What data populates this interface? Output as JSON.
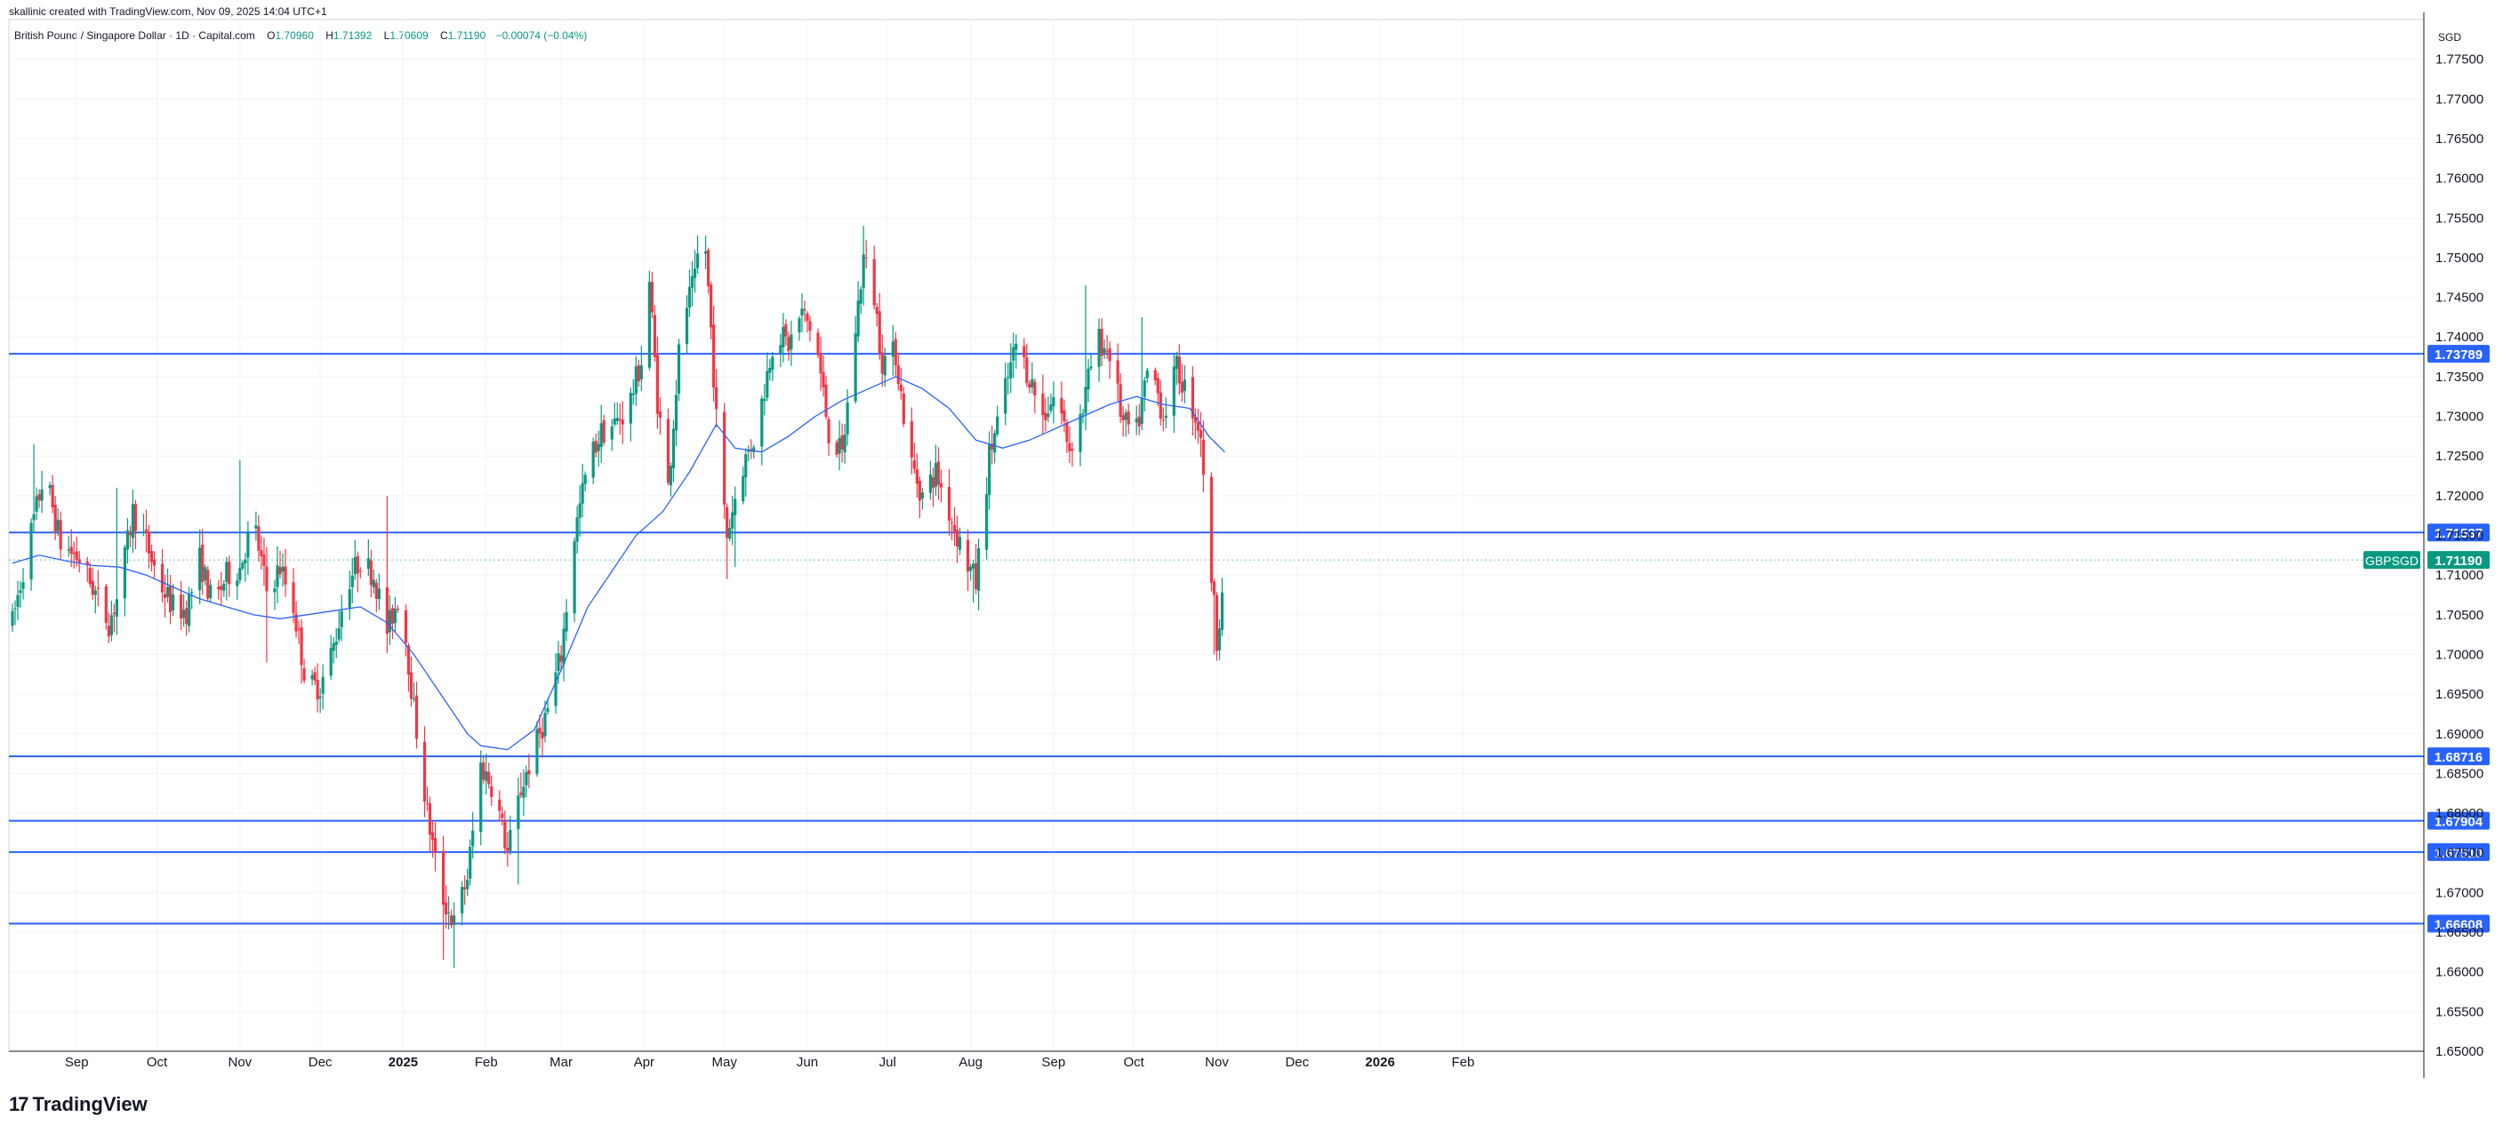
{
  "header": {
    "credit": "skallinic created with TradingView.com, Nov 09, 2025 14:04 UTC+1"
  },
  "legend": {
    "symbol": "British Pound / Singapore Dollar · 1D · Capital.com",
    "o_label": "O",
    "o": "1.70960",
    "h_label": "H",
    "h": "1.71392",
    "l_label": "L",
    "l": "1.70609",
    "c_label": "C",
    "c": "1.71190",
    "change": "−0.00074 (−0.04%)"
  },
  "footer": {
    "logo_mark": "17",
    "logo_text": "TradingView"
  },
  "colors": {
    "up": "#089981",
    "down": "#f23645",
    "level": "#2962ff",
    "ma": "#2962ff",
    "grid": "#f0f3fa",
    "price_tag": "#089981"
  },
  "chart_data": {
    "type": "candlestick",
    "symbol": "GBPSGD",
    "currency": "SGD",
    "ylim": [
      1.65,
      1.78
    ],
    "y_ticks": [
      "1.65000",
      "1.65500",
      "1.66000",
      "1.66500",
      "1.67000",
      "1.67500",
      "1.68000",
      "1.68500",
      "1.69000",
      "1.69500",
      "1.70000",
      "1.70500",
      "1.71000",
      "1.71500",
      "1.72000",
      "1.72500",
      "1.73000",
      "1.73500",
      "1.74000",
      "1.74500",
      "1.75000",
      "1.75500",
      "1.76000",
      "1.76500",
      "1.77000",
      "1.77500"
    ],
    "x_ticks": [
      {
        "label": "Sep",
        "day": 24,
        "bold": false
      },
      {
        "label": "Oct",
        "day": 54,
        "bold": false
      },
      {
        "label": "Nov",
        "day": 85,
        "bold": false
      },
      {
        "label": "Dec",
        "day": 115,
        "bold": false
      },
      {
        "label": "2025",
        "day": 146,
        "bold": true
      },
      {
        "label": "Feb",
        "day": 177,
        "bold": false
      },
      {
        "label": "Mar",
        "day": 205,
        "bold": false
      },
      {
        "label": "Apr",
        "day": 236,
        "bold": false
      },
      {
        "label": "May",
        "day": 266,
        "bold": false
      },
      {
        "label": "Jun",
        "day": 297,
        "bold": false
      },
      {
        "label": "Jul",
        "day": 327,
        "bold": false
      },
      {
        "label": "Aug",
        "day": 358,
        "bold": false
      },
      {
        "label": "Sep",
        "day": 389,
        "bold": false
      },
      {
        "label": "Oct",
        "day": 419,
        "bold": false
      },
      {
        "label": "Nov",
        "day": 450,
        "bold": false
      },
      {
        "label": "Dec",
        "day": 480,
        "bold": false
      },
      {
        "label": "2026",
        "day": 511,
        "bold": true
      },
      {
        "label": "Feb",
        "day": 542,
        "bold": false
      }
    ],
    "horizontal_levels": [
      "1.73789",
      "1.71537",
      "1.68716",
      "1.67904",
      "1.67510",
      "1.66608"
    ],
    "last_price": {
      "label": "GBPSGD",
      "value": "1.71190"
    },
    "moving_average": [
      [
        0,
        1.7115
      ],
      [
        10,
        1.7125
      ],
      [
        20,
        1.7118
      ],
      [
        30,
        1.7112
      ],
      [
        40,
        1.711
      ],
      [
        50,
        1.71
      ],
      [
        60,
        1.7085
      ],
      [
        70,
        1.707
      ],
      [
        80,
        1.706
      ],
      [
        90,
        1.705
      ],
      [
        100,
        1.7045
      ],
      [
        110,
        1.705
      ],
      [
        120,
        1.7055
      ],
      [
        130,
        1.706
      ],
      [
        140,
        1.704
      ],
      [
        150,
        1.7
      ],
      [
        160,
        1.695
      ],
      [
        170,
        1.69
      ],
      [
        175,
        1.6885
      ],
      [
        185,
        1.688
      ],
      [
        195,
        1.6905
      ],
      [
        205,
        1.698
      ],
      [
        215,
        1.706
      ],
      [
        225,
        1.711
      ],
      [
        233,
        1.715
      ],
      [
        243,
        1.718
      ],
      [
        253,
        1.723
      ],
      [
        263,
        1.729
      ],
      [
        270,
        1.726
      ],
      [
        280,
        1.7255
      ],
      [
        290,
        1.7275
      ],
      [
        300,
        1.73
      ],
      [
        310,
        1.732
      ],
      [
        320,
        1.7335
      ],
      [
        330,
        1.735
      ],
      [
        340,
        1.7335
      ],
      [
        350,
        1.731
      ],
      [
        360,
        1.727
      ],
      [
        370,
        1.726
      ],
      [
        380,
        1.727
      ],
      [
        390,
        1.7285
      ],
      [
        400,
        1.73
      ],
      [
        410,
        1.7315
      ],
      [
        420,
        1.7325
      ],
      [
        430,
        1.7315
      ],
      [
        440,
        1.731
      ],
      [
        447,
        1.7275
      ],
      [
        453,
        1.7255
      ]
    ],
    "ohlc_anchors": [
      [
        0,
        1.704
      ],
      [
        6,
        1.714
      ],
      [
        12,
        1.723
      ],
      [
        18,
        1.714
      ],
      [
        25,
        1.712
      ],
      [
        30,
        1.7085
      ],
      [
        36,
        1.704
      ],
      [
        40,
        1.708
      ],
      [
        45,
        1.718
      ],
      [
        50,
        1.714
      ],
      [
        55,
        1.709
      ],
      [
        60,
        1.706
      ],
      [
        65,
        1.7055
      ],
      [
        70,
        1.712
      ],
      [
        75,
        1.706
      ],
      [
        80,
        1.71
      ],
      [
        85,
        1.711
      ],
      [
        90,
        1.717
      ],
      [
        95,
        1.708
      ],
      [
        100,
        1.711
      ],
      [
        105,
        1.706
      ],
      [
        110,
        1.696
      ],
      [
        115,
        1.696
      ],
      [
        120,
        1.701
      ],
      [
        125,
        1.709
      ],
      [
        130,
        1.712
      ],
      [
        135,
        1.71
      ],
      [
        140,
        1.703
      ],
      [
        145,
        1.708
      ],
      [
        150,
        1.693
      ],
      [
        155,
        1.68
      ],
      [
        160,
        1.67
      ],
      [
        165,
        1.666
      ],
      [
        170,
        1.672
      ],
      [
        175,
        1.686
      ],
      [
        180,
        1.683
      ],
      [
        185,
        1.675
      ],
      [
        190,
        1.683
      ],
      [
        195,
        1.688
      ],
      [
        200,
        1.693
      ],
      [
        205,
        1.7
      ],
      [
        210,
        1.715
      ],
      [
        215,
        1.724
      ],
      [
        220,
        1.728
      ],
      [
        225,
        1.729
      ],
      [
        230,
        1.731
      ],
      [
        235,
        1.737
      ],
      [
        238,
        1.747
      ],
      [
        241,
        1.732
      ],
      [
        245,
        1.721
      ],
      [
        250,
        1.742
      ],
      [
        255,
        1.747
      ],
      [
        258,
        1.756
      ],
      [
        261,
        1.741
      ],
      [
        264,
        1.724
      ],
      [
        267,
        1.715
      ],
      [
        272,
        1.723
      ],
      [
        278,
        1.728
      ],
      [
        285,
        1.741
      ],
      [
        290,
        1.739
      ],
      [
        295,
        1.743
      ],
      [
        300,
        1.74
      ],
      [
        305,
        1.728
      ],
      [
        310,
        1.725
      ],
      [
        315,
        1.741
      ],
      [
        318,
        1.75
      ],
      [
        322,
        1.745
      ],
      [
        325,
        1.737
      ],
      [
        330,
        1.738
      ],
      [
        335,
        1.725
      ],
      [
        340,
        1.72
      ],
      [
        345,
        1.723
      ],
      [
        350,
        1.718
      ],
      [
        355,
        1.713
      ],
      [
        360,
        1.709
      ],
      [
        365,
        1.725
      ],
      [
        370,
        1.732
      ],
      [
        375,
        1.739
      ],
      [
        380,
        1.735
      ],
      [
        385,
        1.73
      ],
      [
        390,
        1.733
      ],
      [
        395,
        1.726
      ],
      [
        400,
        1.731
      ],
      [
        405,
        1.74
      ],
      [
        410,
        1.738
      ],
      [
        415,
        1.729
      ],
      [
        420,
        1.728
      ],
      [
        425,
        1.737
      ],
      [
        430,
        1.73
      ],
      [
        435,
        1.736
      ],
      [
        440,
        1.732
      ],
      [
        444,
        1.728
      ],
      [
        446,
        1.715
      ],
      [
        448,
        1.71
      ],
      [
        450,
        1.702
      ],
      [
        452,
        1.708
      ],
      [
        453,
        1.7119
      ]
    ],
    "spikes": [
      {
        "day": 8,
        "high": 1.7265
      },
      {
        "day": 39,
        "high": 1.721
      },
      {
        "day": 85,
        "high": 1.7245
      },
      {
        "day": 95,
        "low": 1.699
      },
      {
        "day": 110,
        "low": 1.6845
      },
      {
        "day": 140,
        "high": 1.72
      },
      {
        "day": 161,
        "low": 1.6615
      },
      {
        "day": 165,
        "low": 1.6605
      },
      {
        "day": 189,
        "low": 1.671
      },
      {
        "day": 237,
        "high": 1.7625
      },
      {
        "day": 258,
        "high": 1.7605
      },
      {
        "day": 243,
        "low": 1.708
      },
      {
        "day": 267,
        "low": 1.7095
      },
      {
        "day": 270,
        "low": 1.711
      },
      {
        "day": 318,
        "high": 1.754
      },
      {
        "day": 345,
        "low": 1.72
      },
      {
        "day": 359,
        "low": 1.7065
      },
      {
        "day": 401,
        "high": 1.7465
      },
      {
        "day": 422,
        "high": 1.7425
      },
      {
        "day": 446,
        "high": 1.716
      },
      {
        "day": 449,
        "low": 1.7
      }
    ]
  }
}
